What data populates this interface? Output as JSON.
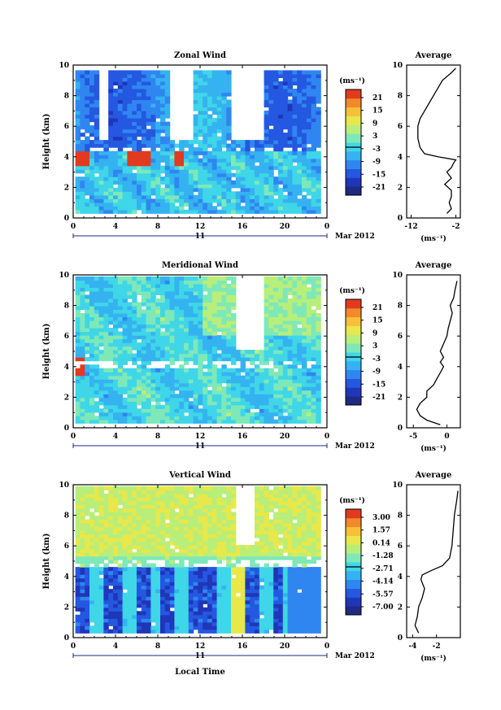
{
  "chart_data": [
    {
      "type": "heatmap",
      "title": "Zonal Wind",
      "xlabel": "",
      "ylabel": "Height (km)",
      "x_ticks": [
        "0",
        "4",
        "8",
        "12",
        "16",
        "20",
        "0"
      ],
      "y_ticks": [
        "0",
        "2",
        "4",
        "6",
        "8",
        "10"
      ],
      "xlim": [
        0,
        24
      ],
      "ylim": [
        0,
        10
      ],
      "date_label": "11",
      "month_label": "Mar 2012",
      "colorbar": {
        "unit": "(ms⁻¹)",
        "ticks": [
          "21",
          "15",
          "9",
          "3",
          "-3",
          "-9",
          "-15",
          "-21"
        ],
        "range": [
          -24,
          24
        ]
      },
      "average": {
        "title": "Average",
        "xlabel": "(ms⁻¹)",
        "x_ticks": [
          "-12",
          "-2"
        ],
        "xlim": [
          -13,
          -1
        ],
        "ylim": [
          0,
          10
        ],
        "profile": [
          [
            -4,
            0.3
          ],
          [
            -3,
            0.6
          ],
          [
            -3.5,
            1.0
          ],
          [
            -3,
            1.4
          ],
          [
            -3,
            1.8
          ],
          [
            -4.5,
            2.2
          ],
          [
            -3,
            2.6
          ],
          [
            -4,
            3.0
          ],
          [
            -3,
            3.3
          ],
          [
            -2.5,
            3.6
          ],
          [
            -2,
            3.8
          ],
          [
            -6,
            4.0
          ],
          [
            -9,
            4.2
          ],
          [
            -10,
            4.6
          ],
          [
            -10.5,
            5.2
          ],
          [
            -10.5,
            6.0
          ],
          [
            -10,
            6.5
          ],
          [
            -9,
            7.0
          ],
          [
            -8,
            7.5
          ],
          [
            -7,
            8.0
          ],
          [
            -6,
            8.5
          ],
          [
            -5,
            9.0
          ],
          [
            -3,
            9.5
          ],
          [
            -2,
            9.8
          ]
        ]
      }
    },
    {
      "type": "heatmap",
      "title": "Meridional Wind",
      "xlabel": "",
      "ylabel": "Height (km)",
      "x_ticks": [
        "0",
        "4",
        "8",
        "12",
        "16",
        "20",
        "0"
      ],
      "y_ticks": [
        "0",
        "2",
        "4",
        "6",
        "8",
        "10"
      ],
      "xlim": [
        0,
        24
      ],
      "ylim": [
        0,
        10
      ],
      "date_label": "11",
      "month_label": "Mar 2012",
      "colorbar": {
        "unit": "(ms⁻¹)",
        "ticks": [
          "21",
          "15",
          "9",
          "3",
          "-3",
          "-9",
          "-15",
          "-21"
        ],
        "range": [
          -24,
          24
        ]
      },
      "average": {
        "title": "Average",
        "xlabel": "(ms⁻¹)",
        "x_ticks": [
          "-5",
          "0"
        ],
        "xlim": [
          -6,
          2
        ],
        "ylim": [
          0,
          10
        ],
        "profile": [
          [
            -1,
            0.2
          ],
          [
            -3,
            0.5
          ],
          [
            -4,
            0.8
          ],
          [
            -4.5,
            1.2
          ],
          [
            -4,
            1.6
          ],
          [
            -3,
            2.0
          ],
          [
            -3,
            2.4
          ],
          [
            -2,
            2.8
          ],
          [
            -1.5,
            3.2
          ],
          [
            -1,
            3.6
          ],
          [
            -0.5,
            4.0
          ],
          [
            -1,
            4.3
          ],
          [
            -0.5,
            4.6
          ],
          [
            -1,
            5.0
          ],
          [
            -0.5,
            5.5
          ],
          [
            0,
            6.0
          ],
          [
            0.2,
            6.5
          ],
          [
            0.5,
            7.0
          ],
          [
            0.8,
            7.5
          ],
          [
            0.5,
            8.0
          ],
          [
            1.0,
            8.5
          ],
          [
            1.2,
            9.0
          ],
          [
            1.5,
            9.6
          ]
        ]
      }
    },
    {
      "type": "heatmap",
      "title": "Vertical Wind",
      "xlabel": "Local Time",
      "ylabel": "Height (km)",
      "x_ticks": [
        "0",
        "4",
        "8",
        "12",
        "16",
        "20",
        "0"
      ],
      "y_ticks": [
        "0",
        "2",
        "4",
        "6",
        "8",
        "10"
      ],
      "xlim": [
        0,
        24
      ],
      "ylim": [
        0,
        10
      ],
      "date_label": "11",
      "month_label": "Mar 2012",
      "colorbar": {
        "unit": "(ms⁻¹)",
        "ticks": [
          "3.00",
          "1.57",
          "0.14",
          "-1.28",
          "-2.71",
          "-4.14",
          "-5.57",
          "-7.00"
        ],
        "range": [
          -7.5,
          3.5
        ]
      },
      "average": {
        "title": "Average",
        "xlabel": "(ms⁻¹)",
        "x_ticks": [
          "-4",
          "-2"
        ],
        "xlim": [
          -4.5,
          0
        ],
        "ylim": [
          0,
          10
        ],
        "profile": [
          [
            -3.5,
            0.3
          ],
          [
            -3.8,
            0.8
          ],
          [
            -3.6,
            1.4
          ],
          [
            -3.5,
            2.0
          ],
          [
            -3.2,
            2.6
          ],
          [
            -3.0,
            3.2
          ],
          [
            -3.3,
            3.8
          ],
          [
            -3.2,
            4.1
          ],
          [
            -2.4,
            4.4
          ],
          [
            -1.5,
            4.7
          ],
          [
            -0.9,
            5.2
          ],
          [
            -0.7,
            6.0
          ],
          [
            -0.6,
            7.0
          ],
          [
            -0.5,
            8.0
          ],
          [
            -0.3,
            9.0
          ],
          [
            -0.2,
            9.6
          ]
        ]
      }
    }
  ]
}
